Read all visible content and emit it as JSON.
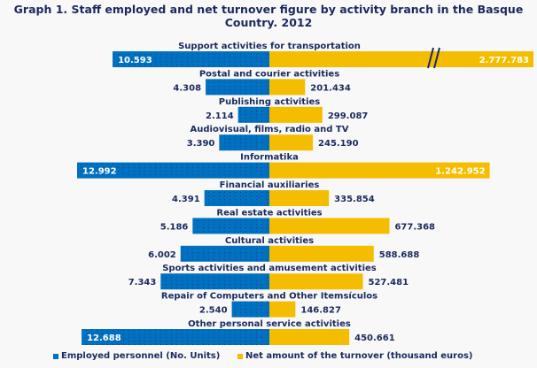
{
  "chart_data": {
    "type": "bar",
    "orientation": "horizontal-diverging",
    "title": "Graph 1. Staff employed and net turnover figure by activity branch in the Basque Country. 2012",
    "categories": [
      "Support activities for transportation",
      "Postal and courier activities",
      "Publishing activities",
      "Audiovisual, films, radio and TV",
      "Informatika",
      "Financial auxiliaries",
      "Real estate activities",
      "Cultural activities",
      "Sports activities and amusement activities",
      "Repair of Computers and Other Itemsículos",
      "Other personal service activities"
    ],
    "series": [
      {
        "name": "Employed personnel (No. Units)",
        "color": "#0070c0",
        "direction": "left",
        "values": [
          10593,
          4308,
          2114,
          3390,
          12992,
          4391,
          5186,
          6002,
          7343,
          2540,
          12688
        ],
        "labels": [
          "10.593",
          "4.308",
          "2.114",
          "3.390",
          "12.992",
          "4.391",
          "5.186",
          "6.002",
          "7.343",
          "2.540",
          "12.688"
        ]
      },
      {
        "name": "Net amount of the turnover (thousand euros)",
        "color": "#f5bd00",
        "direction": "right",
        "values": [
          2777783,
          201434,
          299087,
          245190,
          1242952,
          335854,
          677368,
          588688,
          527481,
          146827,
          450661
        ],
        "labels": [
          "2.777.783",
          "201.434",
          "299.087",
          "245.190",
          "1.242.952",
          "335.854",
          "677.368",
          "588.688",
          "527.481",
          "146.827",
          "450.661"
        ]
      }
    ],
    "axis_break_on": "Support activities for transportation",
    "legend_position": "bottom",
    "grid": false
  }
}
